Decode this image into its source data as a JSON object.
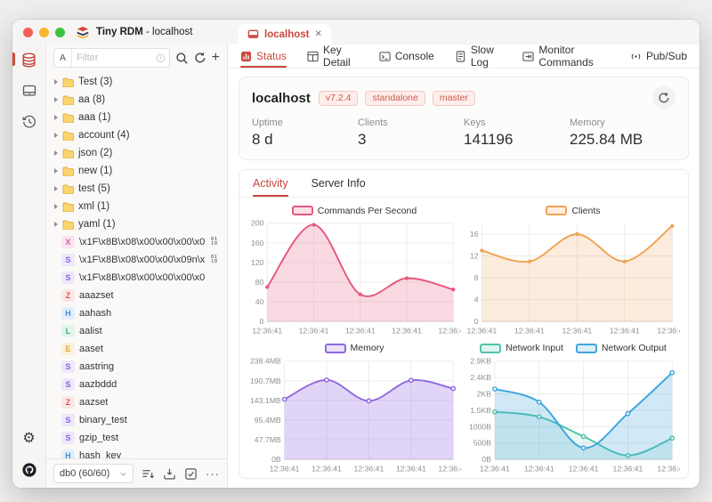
{
  "colors": {
    "accent": "#c9463c",
    "badge_red": "#cd5a4c"
  },
  "window": {
    "app_title": "Tiny RDM",
    "title_host": "- localhost"
  },
  "rail": {
    "items": [
      {
        "icon": "database-icon",
        "active": true
      },
      {
        "icon": "server-monitor-icon",
        "active": false
      },
      {
        "icon": "history-icon",
        "active": false
      }
    ],
    "bottom": [
      {
        "icon": "settings-gear-icon"
      },
      {
        "icon": "github-icon"
      }
    ]
  },
  "sidebar": {
    "filter": {
      "prefix": "A",
      "placeholder": "Filter"
    },
    "folders": [
      {
        "name": "Test",
        "count": 3
      },
      {
        "name": "aa",
        "count": 8
      },
      {
        "name": "aaa",
        "count": 1
      },
      {
        "name": "account",
        "count": 4
      },
      {
        "name": "json",
        "count": 2
      },
      {
        "name": "new",
        "count": 1
      },
      {
        "name": "test",
        "count": 5
      },
      {
        "name": "xml",
        "count": 1
      },
      {
        "name": "yaml",
        "count": 1
      }
    ],
    "keys": [
      {
        "type": "X",
        "name": "\\x1F\\x8B\\x08\\x00\\x00\\x00\\x0...",
        "binary": true
      },
      {
        "type": "S",
        "name": "\\x1F\\x8B\\x08\\x00\\x00\\x09n\\x8...",
        "binary": true
      },
      {
        "type": "S",
        "name": "\\x1F\\x8B\\x08\\x00\\x00\\x00\\x00\\x0...",
        "binary": false
      },
      {
        "type": "Z",
        "name": "aaazset",
        "binary": false
      },
      {
        "type": "H",
        "name": "aahash",
        "binary": false
      },
      {
        "type": "L",
        "name": "aalist",
        "binary": false
      },
      {
        "type": "E",
        "name": "aaset",
        "binary": false
      },
      {
        "type": "S",
        "name": "aastring",
        "binary": false
      },
      {
        "type": "S",
        "name": "aazbddd",
        "binary": false
      },
      {
        "type": "Z",
        "name": "aazset",
        "binary": false
      },
      {
        "type": "S",
        "name": "binary_test",
        "binary": false
      },
      {
        "type": "S",
        "name": "gzip_test",
        "binary": false
      },
      {
        "type": "H",
        "name": "hash_key",
        "binary": false
      }
    ],
    "db_selector": {
      "value": "db0 (60/60)"
    }
  },
  "main": {
    "tab": {
      "label": "localhost",
      "close": "✕"
    },
    "nav": {
      "active_index": 0,
      "items": [
        {
          "label": "Status",
          "icon": "status-icon"
        },
        {
          "label": "Key Detail",
          "icon": "key-detail-icon"
        },
        {
          "label": "Console",
          "icon": "console-icon"
        },
        {
          "label": "Slow Log",
          "icon": "slow-log-icon"
        },
        {
          "label": "Monitor Commands",
          "icon": "monitor-commands-icon"
        },
        {
          "label": "Pub/Sub",
          "icon": "pub-sub-icon"
        }
      ]
    },
    "server": {
      "name": "localhost",
      "badges": [
        "v7.2.4",
        "standalone",
        "master"
      ]
    },
    "stats": [
      {
        "label": "Uptime",
        "value": "8 d"
      },
      {
        "label": "Clients",
        "value": "3"
      },
      {
        "label": "Keys",
        "value": "141196"
      },
      {
        "label": "Memory",
        "value": "225.84 MB"
      }
    ],
    "activity": {
      "active_index": 0,
      "tabs": [
        "Activity",
        "Server Info"
      ]
    }
  },
  "chart_data": [
    {
      "id": "commands-per-second",
      "type": "area",
      "x": [
        "12:36:41",
        "12:36:41",
        "12:36:41",
        "12:36:41",
        "12:36:41"
      ],
      "ymax": 200,
      "ytick_values": [
        0,
        40,
        80,
        120,
        160,
        200
      ],
      "ytick_labels": [
        "0",
        "40",
        "80",
        "120",
        "160",
        "200"
      ],
      "series": [
        {
          "name": "Commands Per Second",
          "color": "#e8577d",
          "fill_opacity": 0.22,
          "hollow": false,
          "values": [
            70,
            197,
            55,
            88,
            65
          ]
        }
      ]
    },
    {
      "id": "clients",
      "type": "area",
      "x": [
        "12:36:41",
        "12:36:41",
        "12:36:41",
        "12:36:41",
        "12:36:41"
      ],
      "ymax": 18,
      "ytick_values": [
        0,
        4,
        8,
        12,
        16
      ],
      "ytick_labels": [
        "0",
        "4",
        "8",
        "12",
        "16"
      ],
      "series": [
        {
          "name": "Clients",
          "color": "#f2a254",
          "fill_opacity": 0.2,
          "hollow": false,
          "values": [
            13,
            11,
            16,
            11,
            17.5
          ]
        }
      ]
    },
    {
      "id": "memory",
      "type": "area",
      "x": [
        "12:36:41",
        "12:36:41",
        "12:36:41",
        "12:36:41",
        "12:36:41"
      ],
      "ymax": 238.4,
      "ytick_values": [
        0,
        47.7,
        95.4,
        143.1,
        190.7,
        238.4
      ],
      "ytick_labels": [
        "0B",
        "47.7MB",
        "95.4MB",
        "143.1MB",
        "190.7MB",
        "238.4MB"
      ],
      "series": [
        {
          "name": "Memory",
          "color": "#9168e0",
          "fill_opacity": 0.28,
          "hollow": true,
          "values": [
            146,
            193,
            142,
            192,
            172
          ]
        }
      ]
    },
    {
      "id": "network",
      "type": "area",
      "x": [
        "12:36:41",
        "12:36:41",
        "12:36:41",
        "12:36:41",
        "12:36:41"
      ],
      "ymax": 3000,
      "ytick_values": [
        0,
        500,
        1000,
        1500,
        2000,
        2500,
        3000
      ],
      "ytick_labels": [
        "0B",
        "500B",
        "1000B",
        "1.5KB",
        "2KB",
        "2.4KB",
        "2.9KB"
      ],
      "series": [
        {
          "name": "Network Input",
          "color": "#4fc3ab",
          "fill_opacity": 0.13,
          "hollow": true,
          "values": [
            1450,
            1300,
            700,
            120,
            650
          ]
        },
        {
          "name": "Network Output",
          "color": "#3fa5de",
          "fill_opacity": 0.24,
          "hollow": true,
          "values": [
            2150,
            1750,
            350,
            1400,
            2650
          ]
        }
      ]
    }
  ]
}
